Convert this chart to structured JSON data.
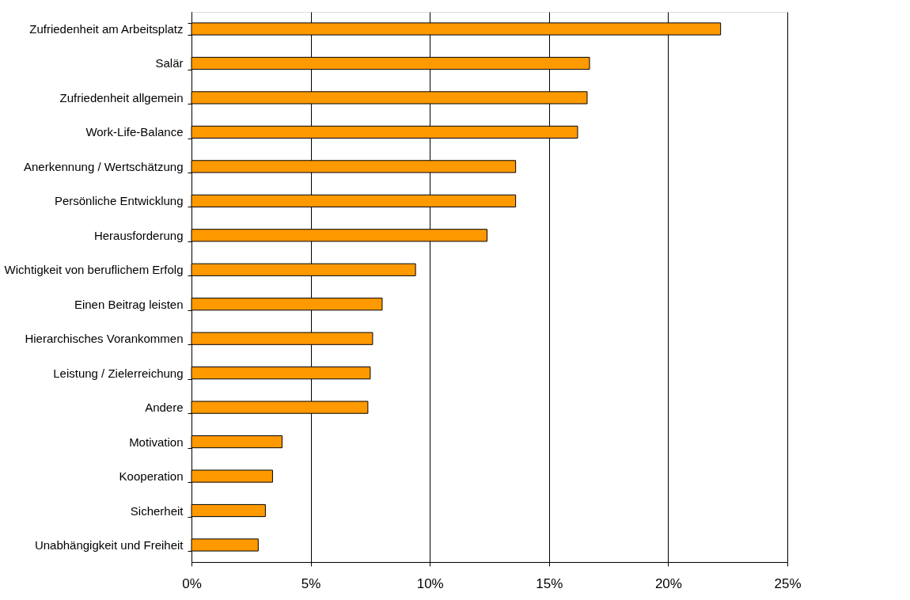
{
  "chart_data": {
    "type": "bar",
    "orientation": "horizontal",
    "categories": [
      "Zufriedenheit am Arbeitsplatz",
      "Salär",
      "Zufriedenheit allgemein",
      "Work-Life-Balance",
      "Anerkennung / Wertschätzung",
      "Persönliche Entwicklung",
      "Herausforderung",
      "Wichtigkeit von beruflichem Erfolg",
      "Einen Beitrag leisten",
      "Hierarchisches Vorankommen",
      "Leistung / Zielerreichung",
      "Andere",
      "Motivation",
      "Kooperation",
      "Sicherheit",
      "Unabhängigkeit und Freiheit"
    ],
    "values": [
      22.2,
      16.7,
      16.6,
      16.2,
      13.6,
      13.6,
      12.4,
      9.4,
      8.0,
      7.6,
      7.5,
      7.4,
      3.8,
      3.4,
      3.1,
      2.8
    ],
    "color": "#ff9900",
    "xlim": [
      0,
      25
    ],
    "xticks": [
      {
        "value": 0,
        "label": "0%"
      },
      {
        "value": 5,
        "label": "5%"
      },
      {
        "value": 10,
        "label": "10%"
      },
      {
        "value": 15,
        "label": "15%"
      },
      {
        "value": 20,
        "label": "20%"
      },
      {
        "value": 25,
        "label": "25%"
      }
    ],
    "grid": "x"
  }
}
